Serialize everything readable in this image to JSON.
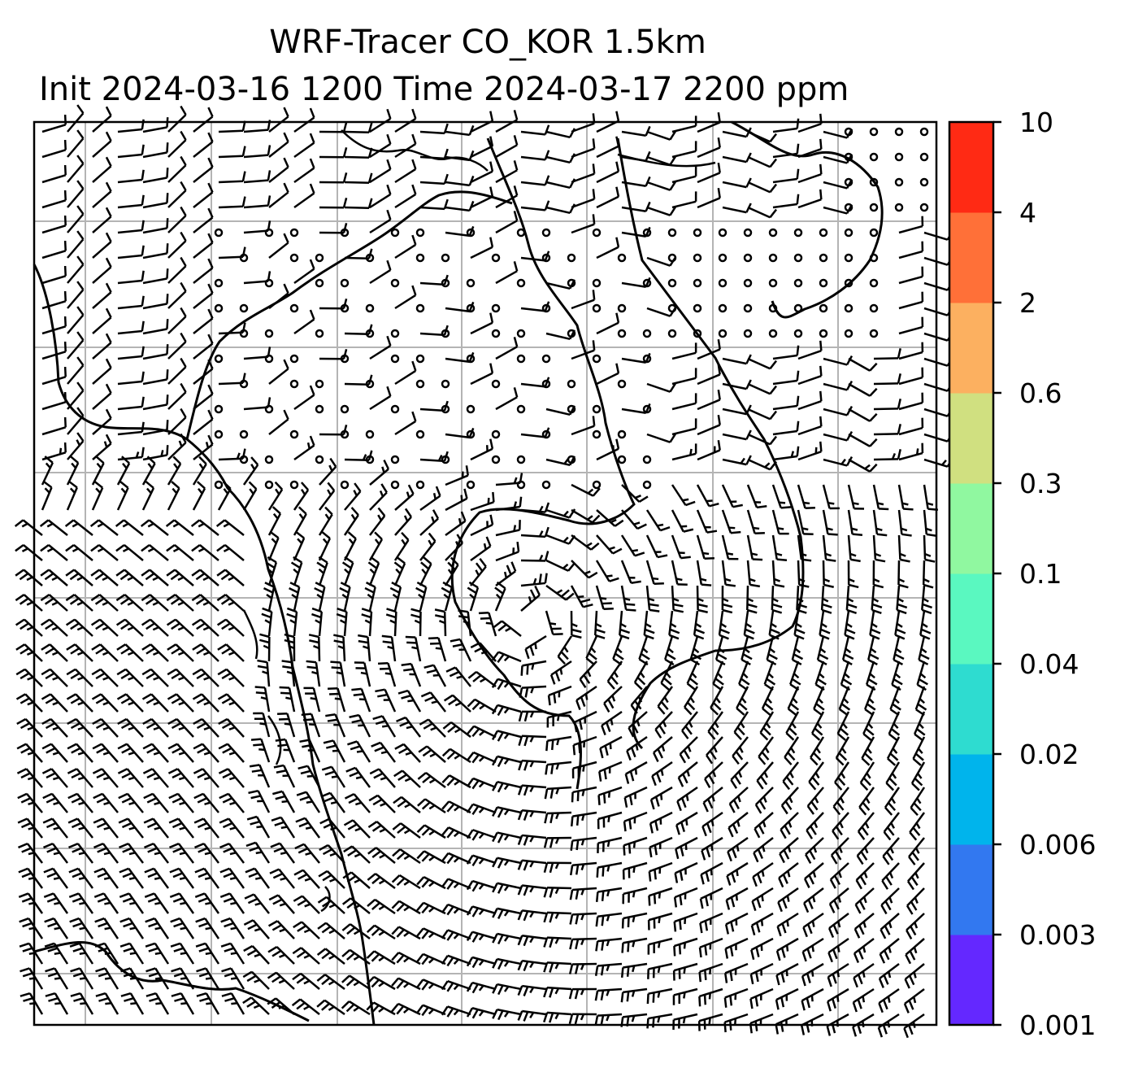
{
  "title": {
    "line1": "WRF-Tracer CO_KOR 1.5km",
    "line2": "Init 2024-03-16 1200 Time 2024-03-17 2200 ppm"
  },
  "colorbar": {
    "levels": [
      "0.001",
      "0.003",
      "0.006",
      "0.02",
      "0.04",
      "0.1",
      "0.3",
      "0.6",
      "2",
      "4",
      "10"
    ],
    "colors": [
      "#6428ff",
      "#3278f0",
      "#00b4ec",
      "#2edcd0",
      "#5af8c0",
      "#90f8a0",
      "#d0e080",
      "#fcb060",
      "#ff7038",
      "#ff2a14"
    ]
  },
  "map": {
    "layers": [
      "coastline",
      "gridlines",
      "wind-barbs"
    ],
    "grid_color": "#b4b4b4",
    "barb_color": "#000000"
  }
}
